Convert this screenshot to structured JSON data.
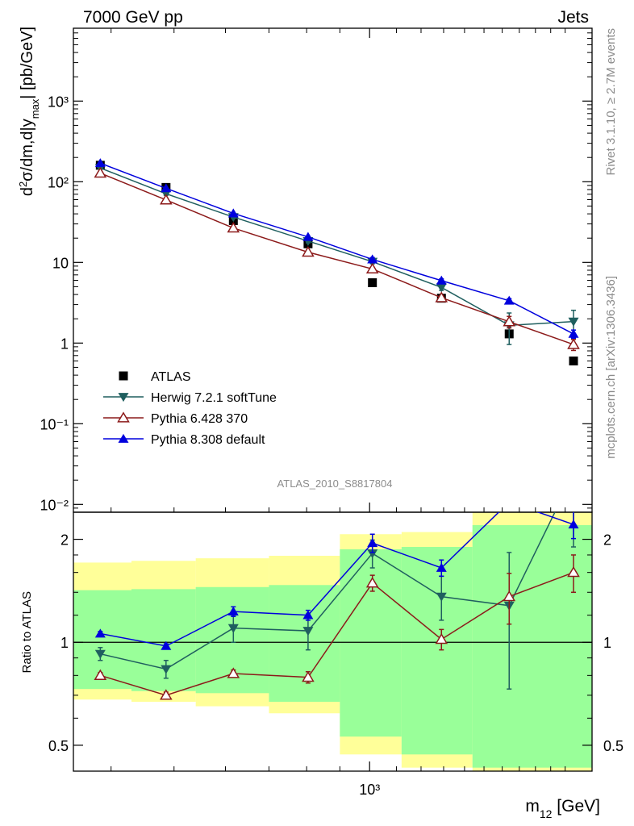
{
  "chart_data": [
    {
      "type": "scatter",
      "panel": "main",
      "title_left": "7000 GeV pp",
      "title_right": "Jets",
      "ylabel": "d²σ/dm,d|y_max| [pb/GeV]",
      "y_scale": "log",
      "ylim": [
        0.008,
        8000
      ],
      "xlim": [
        350,
        2200
      ],
      "x_scale": "log",
      "y_tick_labels": [
        "10⁻²",
        "10⁻¹",
        "1",
        "10",
        "10²",
        "10³"
      ],
      "analysis_label": "ATLAS_2010_S8817804",
      "legend_position": "center-left",
      "x": [
        385,
        486,
        617,
        804,
        1010,
        1290,
        1640,
        2060
      ],
      "series": [
        {
          "name": "ATLAS",
          "color": "#000000",
          "marker": "square",
          "values": [
            160,
            85,
            33,
            17,
            5.6,
            3.6,
            1.3,
            0.6
          ]
        },
        {
          "name": "Herwig 7.2.1 softTune",
          "color": "#1f5f5f",
          "marker": "triangle-down",
          "values": [
            148,
            71,
            36.5,
            18.4,
            10.2,
            4.9,
            1.66,
            1.85
          ],
          "errors": [
            5,
            3,
            1.5,
            0.9,
            0.6,
            0.4,
            0.7,
            0.7
          ]
        },
        {
          "name": "Pythia 6.428 370",
          "color": "#8c1a1a",
          "marker": "triangle-up-open",
          "values": [
            128,
            59.5,
            26.7,
            13.4,
            8.3,
            3.65,
            1.84,
            0.96
          ],
          "errors": [
            3,
            1.5,
            0.8,
            0.5,
            0.4,
            0.25,
            0.3,
            0.15
          ]
        },
        {
          "name": "Pythia 8.308 default",
          "color": "#0000dd",
          "marker": "triangle-up",
          "values": [
            170,
            83,
            40.5,
            20.7,
            10.9,
            5.95,
            3.35,
            1.3
          ],
          "errors": [
            3,
            1.5,
            0.8,
            0.6,
            0.6,
            0.3,
            0.2,
            0.15
          ]
        }
      ]
    },
    {
      "type": "line",
      "panel": "ratio",
      "ylabel": "Ratio to ATLAS",
      "y_scale": "log",
      "ylim": [
        0.42,
        2.4
      ],
      "y_tick_labels": [
        "0.5",
        "1",
        "2"
      ],
      "xlabel": "m₁₂ [GeV]",
      "x_tick_labels": [
        "10³"
      ],
      "band_edges": [
        340,
        430,
        540,
        700,
        900,
        1120,
        1440,
        2300
      ],
      "band_1sigma": [
        [
          0.73,
          1.42
        ],
        [
          0.72,
          1.43
        ],
        [
          0.71,
          1.45
        ],
        [
          0.67,
          1.47
        ],
        [
          0.53,
          1.87
        ],
        [
          0.47,
          1.9
        ],
        [
          0.43,
          2.2
        ]
      ],
      "band_2sigma": [
        [
          0.68,
          1.71
        ],
        [
          0.67,
          1.73
        ],
        [
          0.65,
          1.76
        ],
        [
          0.62,
          1.79
        ],
        [
          0.47,
          2.07
        ],
        [
          0.43,
          2.1
        ],
        [
          0.33,
          2.6
        ]
      ],
      "reference_line": 1,
      "x": [
        385,
        486,
        617,
        804,
        1010,
        1290,
        1640,
        2060
      ],
      "series": [
        {
          "name": "Herwig 7.2.1 softTune",
          "color": "#1f5f5f",
          "marker": "triangle-down",
          "values": [
            0.925,
            0.835,
            1.1,
            1.08,
            1.82,
            1.36,
            1.28,
            3.1
          ],
          "errors": [
            0.04,
            0.05,
            0.1,
            0.13,
            0.17,
            0.2,
            0.55,
            1.2
          ]
        },
        {
          "name": "Pythia 6.428 370",
          "color": "#8c1a1a",
          "marker": "triangle-up-open",
          "values": [
            0.8,
            0.7,
            0.81,
            0.79,
            1.49,
            1.02,
            1.36,
            1.6
          ],
          "errors": [
            0.015,
            0.015,
            0.02,
            0.03,
            0.08,
            0.07,
            0.23,
            0.2
          ]
        },
        {
          "name": "Pythia 8.308 default",
          "color": "#0000dd",
          "marker": "triangle-up",
          "values": [
            1.06,
            0.975,
            1.23,
            1.2,
            1.95,
            1.65,
            2.57,
            2.21
          ],
          "errors": [
            0.015,
            0.015,
            0.04,
            0.04,
            0.12,
            0.09,
            0.12,
            0.2
          ]
        }
      ]
    }
  ],
  "side_labels": {
    "rivet": "Rivet 3.1.10, ≥ 2.7M events",
    "source": "mcplots.cern.ch [arXiv:1306.3436]"
  }
}
